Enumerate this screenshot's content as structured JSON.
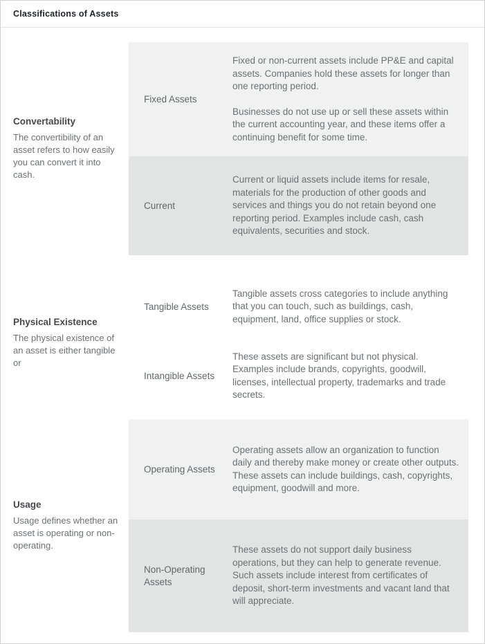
{
  "header": {
    "title": "Classifications of Assets"
  },
  "colors": {
    "row_light": "#f0f2f2",
    "row_dark": "#e0e5e4",
    "text_primary": "#45494d",
    "text_secondary": "#6a7175"
  },
  "sections": [
    {
      "name": "Convertability",
      "description": "The convertibility of an asset refers to how easily you can convert it into cash.",
      "rows": [
        {
          "label": "Fixed Assets",
          "shade": "light",
          "paragraphs": [
            "Fixed or non-current assets include PP&E and capital assets. Companies hold these assets for longer than one reporting period.",
            "Businesses do not use up or sell these assets within the current accounting year, and these items offer a continuing benefit for some time."
          ]
        },
        {
          "label": "Current",
          "shade": "dark",
          "paragraphs": [
            "Current or liquid assets include items for resale, materials for the production of other goods and services and things you do not retain beyond one reporting period. Examples include cash, cash equivalents, securities and stock."
          ]
        }
      ]
    },
    {
      "name": "Physical Existence",
      "description": "The physical existence of an asset is either tangible or",
      "rows": [
        {
          "label": "Tangible Assets",
          "shade": "none",
          "paragraphs": [
            "Tangible assets cross categories to include anything that you can touch, such as buildings, cash, equipment, land, office supplies or stock."
          ]
        },
        {
          "label": "Intangible Assets",
          "shade": "none",
          "paragraphs": [
            "These assets are significant but not physical. Examples include brands, copyrights, goodwill, licenses, intellectual property, trademarks and trade secrets."
          ]
        }
      ]
    },
    {
      "name": "Usage",
      "description": "Usage defines whether an asset is operating or non-operating.",
      "rows": [
        {
          "label": "Operating Assets",
          "shade": "light",
          "paragraphs": [
            "Operating assets allow an organization to function daily and thereby make money or create other outputs. These assets can include buildings, cash, copyrights, equipment, goodwill and more."
          ]
        },
        {
          "label": "Non-Operating Assets",
          "shade": "dark",
          "paragraphs": [
            "These assets do not support daily business operations, but they can help to generate revenue. Such assets include interest from certificates of deposit, short-term investments and vacant land that will appreciate."
          ]
        }
      ]
    }
  ]
}
